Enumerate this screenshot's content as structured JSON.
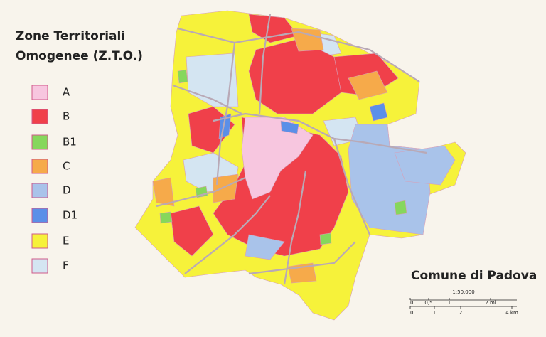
{
  "title": [
    "Zone Territoriali",
    "Omogenee (Z.T.O.)"
  ],
  "legend": {
    "items": [
      {
        "label": "A",
        "color": "#f7c6df"
      },
      {
        "label": "B",
        "color": "#f0404a"
      },
      {
        "label": "B1",
        "color": "#86d75c"
      },
      {
        "label": "C",
        "color": "#f6aa4a"
      },
      {
        "label": "D",
        "color": "#a9c3ea"
      },
      {
        "label": "D1",
        "color": "#5b8fe8"
      },
      {
        "label": "E",
        "color": "#f6f23a"
      },
      {
        "label": "F",
        "color": "#d4e5f2"
      }
    ]
  },
  "place": "Comune di Padova",
  "scale": {
    "ratio": "1:50.000",
    "miles": [
      "0",
      "0,5",
      "1",
      "2 mi"
    ],
    "km": [
      "0",
      "1",
      "2",
      "4 km"
    ]
  }
}
